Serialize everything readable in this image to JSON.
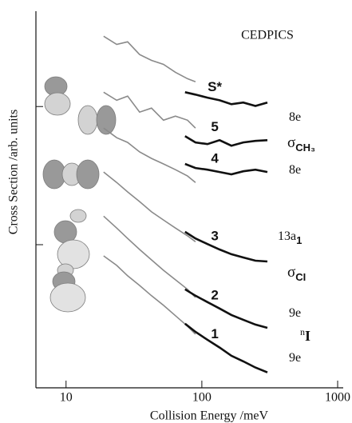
{
  "chart_data": {
    "type": "line",
    "annotation": "CEDPICS",
    "xlabel": "Collision Energy /meV",
    "ylabel": "Cross Section /arb. units",
    "xscale": "log",
    "yscale": "log",
    "xlim": [
      6.0,
      1099
    ],
    "ylim": [
      0.092,
      49
    ],
    "xticks": [
      10,
      100,
      1000
    ],
    "yticks": [
      1,
      10
    ],
    "series": [
      {
        "color": "#8a8a8a",
        "x": [
          18.9,
          23.6,
          28.4,
          34.8,
          42.6,
          52.2,
          63.9,
          78.4,
          89.7
        ],
        "values": [
          32.3,
          28.2,
          29.4,
          23.8,
          21.6,
          20.2,
          17.7,
          15.9,
          15.1
        ]
      },
      {
        "name": "S*",
        "color": "#111111",
        "x": [
          75.2,
          89.7,
          110,
          135,
          165,
          202,
          248,
          304
        ],
        "values": [
          12.7,
          12.2,
          11.6,
          11.1,
          10.4,
          10.7,
          10.1,
          10.7
        ]
      },
      {
        "color": "#8a8a8a",
        "x": [
          18.9,
          23.6,
          28.4,
          34.8,
          42.6,
          52.2,
          63.9,
          78.4,
          89.7
        ],
        "values": [
          12.7,
          11.1,
          11.9,
          9.11,
          9.74,
          7.97,
          8.53,
          7.97,
          6.98
        ]
      },
      {
        "name": "5",
        "color": "#111111",
        "x": [
          75.2,
          89.7,
          110,
          135,
          165,
          202,
          248,
          304
        ],
        "values": [
          6.11,
          5.5,
          5.35,
          5.71,
          5.21,
          5.5,
          5.64,
          5.71
        ]
      },
      {
        "color": "#8a8a8a",
        "x": [
          18.9,
          23.6,
          28.4,
          34.8,
          42.6,
          52.2,
          63.9,
          78.4,
          89.7
        ],
        "values": [
          6.98,
          5.95,
          5.5,
          4.69,
          4.21,
          3.84,
          3.49,
          3.14,
          2.82
        ]
      },
      {
        "name": "4",
        "color": "#111111",
        "x": [
          75.2,
          89.7,
          110,
          135,
          165,
          202,
          248,
          304
        ],
        "values": [
          3.84,
          3.59,
          3.49,
          3.36,
          3.23,
          3.4,
          3.49,
          3.36
        ]
      },
      {
        "color": "#8a8a8a",
        "x": [
          18.9,
          23.6,
          28.4,
          34.8,
          42.6,
          52.2,
          63.9,
          78.4,
          89.7
        ],
        "values": [
          3.36,
          2.82,
          2.41,
          2.05,
          1.73,
          1.51,
          1.32,
          1.16,
          1.05
        ]
      },
      {
        "name": "3",
        "color": "#111111",
        "x": [
          75.2,
          89.7,
          110,
          135,
          165,
          202,
          248,
          304
        ],
        "values": [
          1.24,
          1.11,
          1.01,
          0.923,
          0.853,
          0.808,
          0.766,
          0.756
        ]
      },
      {
        "color": "#8a8a8a",
        "x": [
          18.9,
          23.6,
          28.4,
          34.8,
          42.6,
          52.2,
          63.9,
          78.4,
          89.7
        ],
        "values": [
          1.61,
          1.32,
          1.11,
          0.923,
          0.776,
          0.653,
          0.557,
          0.475,
          0.415
        ]
      },
      {
        "name": "2",
        "color": "#111111",
        "x": [
          75.2,
          89.7,
          110,
          135,
          165,
          202,
          248,
          304
        ],
        "values": [
          0.475,
          0.427,
          0.384,
          0.345,
          0.31,
          0.286,
          0.264,
          0.25
        ]
      },
      {
        "color": "#8a8a8a",
        "x": [
          18.9,
          23.6,
          28.4,
          34.8,
          42.6,
          52.2,
          63.9,
          78.4,
          89.7
        ],
        "values": [
          0.83,
          0.708,
          0.595,
          0.507,
          0.427,
          0.364,
          0.306,
          0.257,
          0.225
        ]
      },
      {
        "name": "1",
        "color": "#111111",
        "x": [
          75.2,
          89.7,
          110,
          135,
          165,
          202,
          248,
          304
        ],
        "values": [
          0.268,
          0.234,
          0.205,
          0.18,
          0.157,
          0.143,
          0.129,
          0.119
        ]
      }
    ],
    "orbital_labels": [
      {
        "main": "8e"
      },
      {
        "main": "σ",
        "sub": "CH₃"
      },
      {
        "main": "8e"
      },
      {
        "main": "13a",
        "sub": "1"
      },
      {
        "main": "σ",
        "sub": "CI"
      },
      {
        "main": "9e"
      },
      {
        "pre": "n",
        "main": "I"
      },
      {
        "main": "9e"
      }
    ]
  }
}
